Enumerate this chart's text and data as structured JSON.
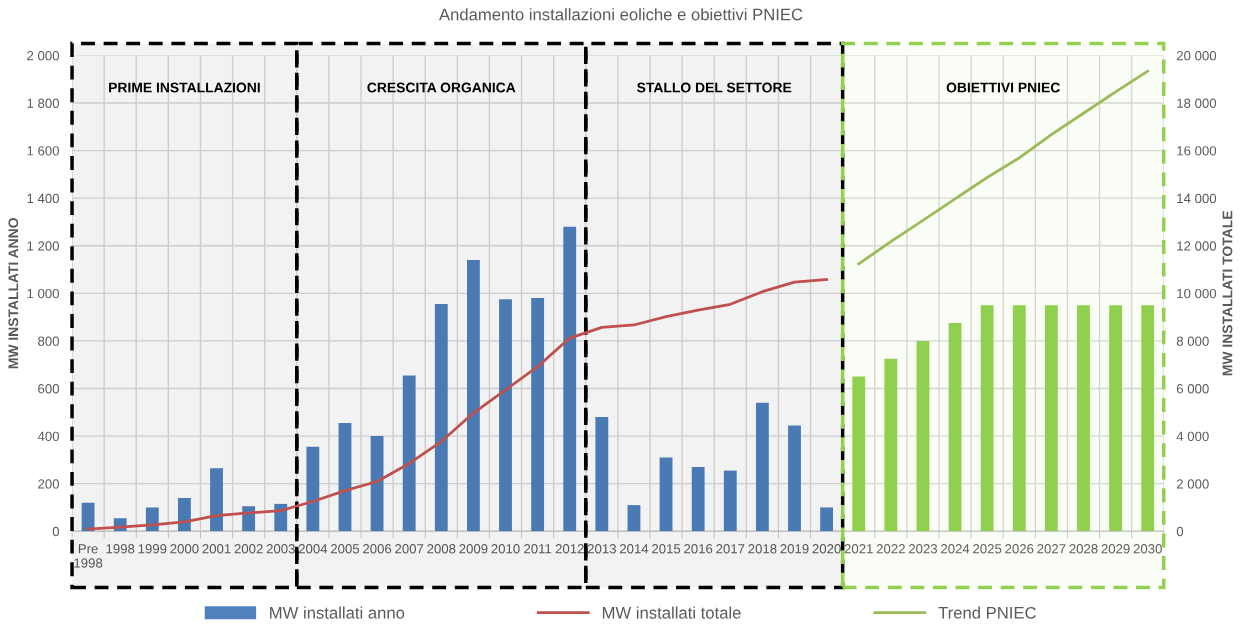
{
  "chart_data": {
    "type": "bar",
    "title": "Andamento installazioni eoliche e obiettivi PNIEC",
    "ylabel": "MW INSTALLATI ANNO",
    "y2label": "MW INSTALLATI TOTALE",
    "categories": [
      "Pre\n1998",
      "1998",
      "1999",
      "2000",
      "2001",
      "2002",
      "2003",
      "2004",
      "2005",
      "2006",
      "2007",
      "2008",
      "2009",
      "2010",
      "2011",
      "2012",
      "2013",
      "2014",
      "2015",
      "2016",
      "2017",
      "2018",
      "2019",
      "2020",
      "2021",
      "2022",
      "2023",
      "2024",
      "2025",
      "2026",
      "2027",
      "2028",
      "2029",
      "2030"
    ],
    "series": [
      {
        "name": "MW installati anno",
        "color": "#4f81bd",
        "colors": [
          "#4f81bd",
          "#4f81bd",
          "#4f81bd",
          "#4f81bd",
          "#4f81bd",
          "#4f81bd",
          "#4f81bd",
          "#4f81bd",
          "#4f81bd",
          "#4f81bd",
          "#4f81bd",
          "#4f81bd",
          "#4f81bd",
          "#4f81bd",
          "#4f81bd",
          "#4f81bd",
          "#4f81bd",
          "#4f81bd",
          "#4f81bd",
          "#4f81bd",
          "#4f81bd",
          "#4f81bd",
          "#4f81bd",
          "#4f81bd",
          "#92d050",
          "#92d050",
          "#92d050",
          "#92d050",
          "#92d050",
          "#92d050",
          "#92d050",
          "#92d050",
          "#92d050",
          "#92d050"
        ],
        "values": [
          120,
          55,
          100,
          140,
          265,
          105,
          115,
          355,
          455,
          400,
          655,
          955,
          1140,
          975,
          980,
          1280,
          480,
          110,
          310,
          270,
          255,
          540,
          445,
          100,
          650,
          725,
          800,
          875,
          950,
          950,
          950,
          950,
          950,
          950
        ]
      },
      {
        "name": "MW installati totale",
        "type": "line",
        "axis": "y2",
        "color": "#c0504d",
        "values": [
          90,
          170,
          270,
          390,
          660,
          770,
          870,
          1250,
          1710,
          2090,
          2850,
          3770,
          4970,
          5940,
          6920,
          8120,
          8570,
          8670,
          9020,
          9290,
          9540,
          10070,
          10470,
          10580,
          null,
          null,
          null,
          null,
          null,
          null,
          null,
          null,
          null,
          null
        ]
      },
      {
        "name": "Trend PNIEC",
        "type": "line",
        "axis": "y2",
        "color": "#9bbb59",
        "values": [
          null,
          null,
          null,
          null,
          null,
          null,
          null,
          null,
          null,
          null,
          null,
          null,
          null,
          null,
          null,
          null,
          null,
          null,
          null,
          null,
          null,
          null,
          null,
          null,
          11240,
          12170,
          13070,
          13970,
          14870,
          15690,
          16670,
          17570,
          18470,
          19340
        ]
      }
    ],
    "ylim": [
      0,
      2000
    ],
    "yticks": [
      0,
      200,
      400,
      600,
      800,
      {
        "value": 1000,
        "label": "1 000"
      },
      {
        "value": 1200,
        "label": "1 200"
      },
      {
        "value": 1400,
        "label": "1 400"
      },
      {
        "value": 1600,
        "label": "1 600"
      },
      {
        "value": 1800,
        "label": "1 800"
      },
      {
        "value": 2000,
        "label": "2 000"
      }
    ],
    "y2lim": [
      0,
      20000
    ],
    "y2ticks": [
      0,
      {
        "value": 2000,
        "label": "2 000"
      },
      {
        "value": 4000,
        "label": "4 000"
      },
      {
        "value": 6000,
        "label": "6 000"
      },
      {
        "value": 8000,
        "label": "8 000"
      },
      {
        "value": 10000,
        "label": "10 000"
      },
      {
        "value": 12000,
        "label": "12 000"
      },
      {
        "value": 14000,
        "label": "14 000"
      },
      {
        "value": 16000,
        "label": "16 000"
      },
      {
        "value": 18000,
        "label": "18 000"
      },
      {
        "value": 20000,
        "label": "20 000"
      }
    ],
    "bands": [
      {
        "axis": "x",
        "from": "Pre\n1998",
        "to": "2003",
        "label": "PRIME INSTALLAZIONI",
        "color": "#000000"
      },
      {
        "axis": "x",
        "from": "2004",
        "to": "2012",
        "label": "CRESCITA ORGANICA",
        "color": "#000000"
      },
      {
        "axis": "x",
        "from": "2013",
        "to": "2020",
        "label": "STALLO DEL SETTORE",
        "color": "#000000"
      },
      {
        "axis": "x",
        "from": "2021",
        "to": "2030",
        "label": "OBIETTIVI PNIEC",
        "color": "#92d050"
      }
    ],
    "grid": true,
    "legend": "bottom"
  }
}
